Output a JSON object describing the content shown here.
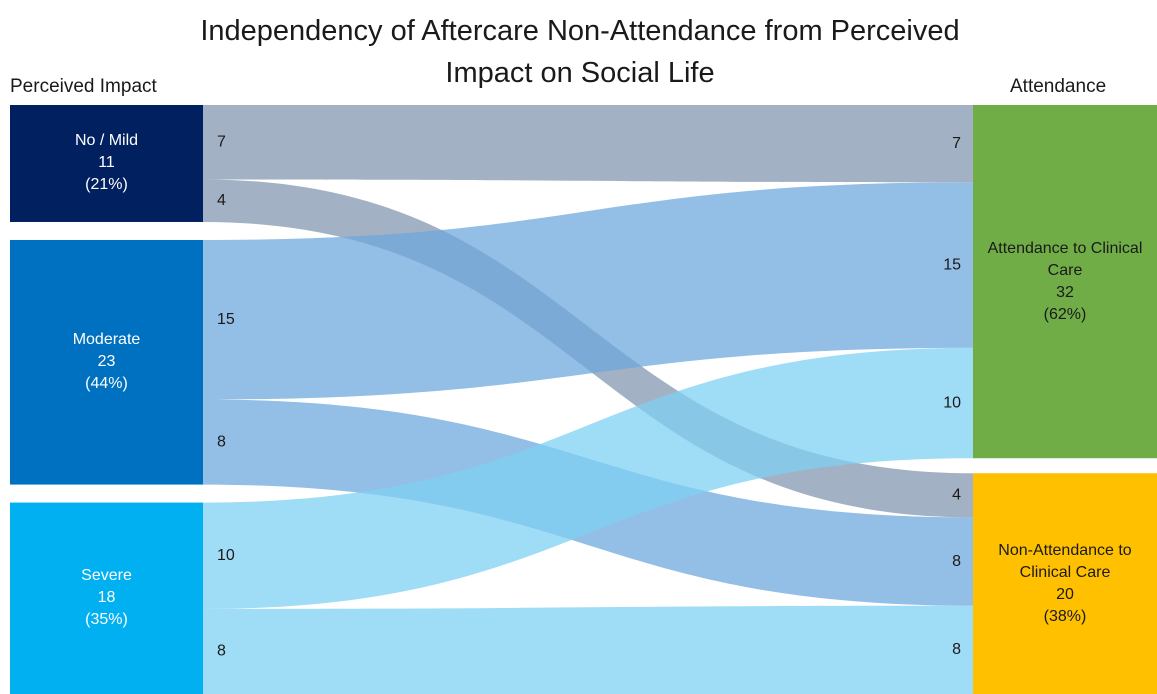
{
  "chart_data": {
    "type": "sankey",
    "title": "Independency of Aftercare Non-Attendance from Perceived Impact on Social Life",
    "left_heading": "Perceived Impact",
    "right_heading": "Attendance",
    "sources": [
      {
        "name": "No / Mild",
        "value": 11,
        "share": 21,
        "share_label": "(21%)",
        "color": "#002060",
        "text_color": "#ffffff"
      },
      {
        "name": "Moderate",
        "value": 23,
        "share": 44,
        "share_label": "(44%)",
        "color": "#0070c0",
        "text_color": "#ffffff"
      },
      {
        "name": "Severe",
        "value": 18,
        "share": 35,
        "share_label": "(35%)",
        "color": "#00b0f0",
        "text_color": "#ffffff"
      }
    ],
    "targets": [
      {
        "name": "Attendance to Clinical Care",
        "value": 32,
        "share": 62,
        "share_label": "(62%)",
        "color": "#70ad47",
        "text_color": "#1a1a1a"
      },
      {
        "name": "Non-Attendance to Clinical Care",
        "value": 20,
        "share": 38,
        "share_label": "(38%)",
        "color": "#ffc000",
        "text_color": "#1a1a1a"
      }
    ],
    "flows": [
      {
        "source": 0,
        "target": 0,
        "value": 7,
        "color": "#8497b0"
      },
      {
        "source": 0,
        "target": 1,
        "value": 4,
        "color": "#8497b0"
      },
      {
        "source": 1,
        "target": 0,
        "value": 15,
        "color": "#6fa8dc"
      },
      {
        "source": 1,
        "target": 1,
        "value": 8,
        "color": "#6fa8dc"
      },
      {
        "source": 2,
        "target": 0,
        "value": 10,
        "color": "#7fd0f2"
      },
      {
        "source": 2,
        "target": 1,
        "value": 8,
        "color": "#7fd0f2"
      }
    ]
  }
}
